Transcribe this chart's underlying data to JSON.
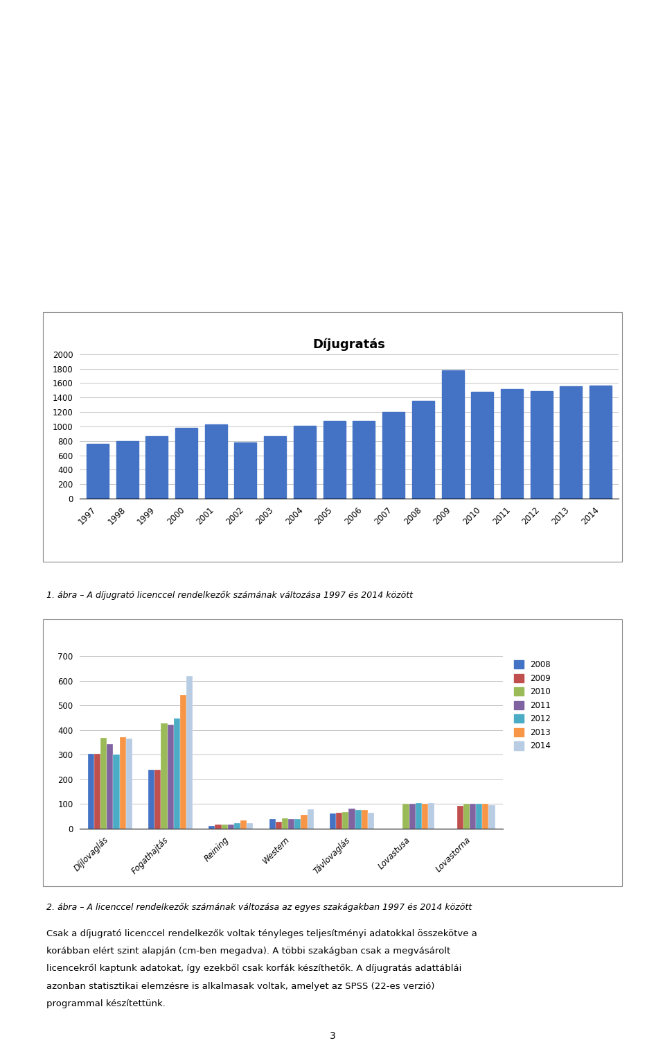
{
  "chart1": {
    "title": "Díjugratás",
    "years": [
      1997,
      1998,
      1999,
      2000,
      2001,
      2002,
      2003,
      2004,
      2005,
      2006,
      2007,
      2008,
      2009,
      2010,
      2011,
      2012,
      2013,
      2014
    ],
    "values": [
      755,
      800,
      865,
      975,
      1025,
      775,
      865,
      1005,
      1080,
      1080,
      1200,
      1355,
      1775,
      1480,
      1520,
      1485,
      1555,
      1565
    ],
    "bar_color": "#4472C4",
    "ylim": [
      0,
      2000
    ],
    "yticks": [
      0,
      200,
      400,
      600,
      800,
      1000,
      1200,
      1400,
      1600,
      1800,
      2000
    ]
  },
  "caption1": "1. ábra – A díjugrató licenccel rendelkezők számának változása 1997 és 2014 között",
  "chart2": {
    "categories": [
      "Díjlovaglás",
      "Fogathajtás",
      "Reining",
      "Western",
      "Távlovaglás",
      "Lovastusa",
      "Lovastorna"
    ],
    "series": {
      "2008": [
        305,
        238,
        10,
        38,
        62,
        0,
        0
      ],
      "2009": [
        305,
        238,
        15,
        28,
        63,
        0,
        93
      ],
      "2010": [
        368,
        428,
        17,
        43,
        68,
        100,
        100
      ],
      "2011": [
        342,
        422,
        17,
        38,
        80,
        100,
        100
      ],
      "2012": [
        300,
        448,
        22,
        38,
        75,
        105,
        100
      ],
      "2013": [
        370,
        542,
        33,
        55,
        75,
        100,
        100
      ],
      "2014": [
        365,
        620,
        23,
        78,
        65,
        105,
        95
      ]
    },
    "series_colors": {
      "2008": "#4472C4",
      "2009": "#C0504D",
      "2010": "#9BBB59",
      "2011": "#8064A2",
      "2012": "#4BACC6",
      "2013": "#F79646",
      "2014": "#B8CCE4"
    },
    "ylim": [
      0,
      700
    ],
    "yticks": [
      0,
      100,
      200,
      300,
      400,
      500,
      600,
      700
    ]
  },
  "caption2": "2. ábra – A licenccel rendelkezők számának változása az egyes szakágakban 1997 és 2014 között",
  "body_text": [
    "Csak a díjugrató licenccel rendelkezők voltak tényleges teljesítményi adatokkal összekötve a",
    "korábban elért szint alapján (cm-ben megadva). A többi szakágban csak a megvásárolt",
    "licencekről kaptunk adatokat, így ezekből csak korfák készíthetők. A díjugratás adattáblái",
    "azonban statisztikai elemzésre is alkalmasak voltak, amelyet az SPSS (22-es verzió)",
    "programmal készítettünk."
  ],
  "page_number": "3",
  "background_color": "#FFFFFF",
  "grid_color": "#AAAAAA",
  "text_color": "#000000"
}
